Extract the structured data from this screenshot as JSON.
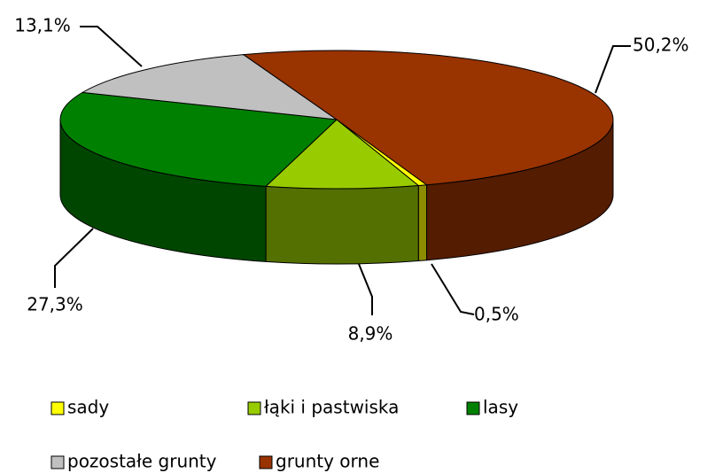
{
  "chart_data": {
    "type": "pie",
    "categories": [
      "sady",
      "łąki i pastwiska",
      "lasy",
      "pozostałe grunty",
      "grunty orne"
    ],
    "values": [
      0.5,
      8.9,
      27.3,
      13.1,
      50.2
    ],
    "value_labels": [
      "0,5%",
      "8,9%",
      "27,3%",
      "13,1%",
      "50,2%"
    ],
    "colors": [
      "#ffff00",
      "#99cc00",
      "#008000",
      "#c0c0c0",
      "#993300"
    ],
    "legend": "bottom"
  }
}
